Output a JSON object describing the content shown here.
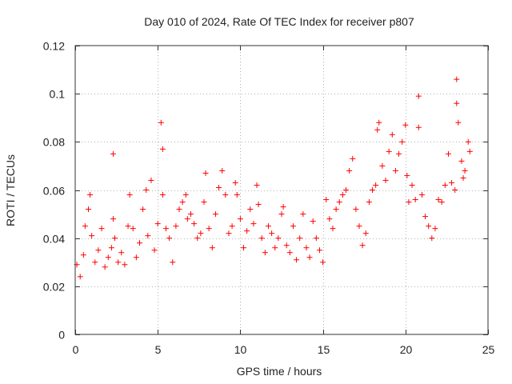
{
  "chart_data": {
    "type": "scatter",
    "title": "Day 010 of 2024, Rate Of TEC Index for receiver p807",
    "xlabel": "GPS time / hours",
    "ylabel": "ROTI / TECUs",
    "xlim": [
      0,
      25
    ],
    "ylim": [
      0,
      0.12
    ],
    "x_ticks": [
      "0",
      "5",
      "10",
      "15",
      "20",
      "25"
    ],
    "y_ticks": [
      "0",
      "0.02",
      "0.04",
      "0.06",
      "0.08",
      "0.1",
      "0.12"
    ],
    "x_tick_values": [
      0,
      5,
      10,
      15,
      20,
      25
    ],
    "y_tick_values": [
      0,
      0.02,
      0.04,
      0.06,
      0.08,
      0.1,
      0.12
    ],
    "grid": true,
    "marker": "+",
    "color": "#ff0000",
    "series": [
      {
        "name": "ROTI",
        "x": [
          0.1,
          0.3,
          0.5,
          0.6,
          0.8,
          0.9,
          1.0,
          1.2,
          1.4,
          1.6,
          1.8,
          2.0,
          2.2,
          2.3,
          2.3,
          2.4,
          2.6,
          2.8,
          3.0,
          3.2,
          3.3,
          3.5,
          3.7,
          3.9,
          4.1,
          4.3,
          4.4,
          4.6,
          4.8,
          5.0,
          5.2,
          5.3,
          5.3,
          5.5,
          5.7,
          5.9,
          6.1,
          6.3,
          6.5,
          6.7,
          6.8,
          7.0,
          7.2,
          7.4,
          7.6,
          7.8,
          7.9,
          8.1,
          8.3,
          8.5,
          8.7,
          8.9,
          9.1,
          9.3,
          9.5,
          9.7,
          9.8,
          10.0,
          10.2,
          10.4,
          10.6,
          10.8,
          11.0,
          11.1,
          11.3,
          11.5,
          11.7,
          11.9,
          12.1,
          12.3,
          12.5,
          12.6,
          12.8,
          13.0,
          13.2,
          13.4,
          13.6,
          13.8,
          14.0,
          14.2,
          14.4,
          14.6,
          14.8,
          15.0,
          15.2,
          15.4,
          15.6,
          15.8,
          16.0,
          16.2,
          16.4,
          16.6,
          16.8,
          17.0,
          17.2,
          17.4,
          17.6,
          17.8,
          18.0,
          18.2,
          18.3,
          18.4,
          18.6,
          18.8,
          19.0,
          19.2,
          19.4,
          19.6,
          19.8,
          20.0,
          20.1,
          20.2,
          20.4,
          20.6,
          20.8,
          20.8,
          21.0,
          21.2,
          21.4,
          21.6,
          21.8,
          22.0,
          22.2,
          22.4,
          22.6,
          22.8,
          23.0,
          23.1,
          23.1,
          23.2,
          23.4,
          23.5,
          23.6,
          23.8,
          23.9
        ],
        "y": [
          0.029,
          0.024,
          0.033,
          0.045,
          0.052,
          0.058,
          0.041,
          0.03,
          0.035,
          0.044,
          0.028,
          0.032,
          0.036,
          0.075,
          0.048,
          0.04,
          0.03,
          0.034,
          0.029,
          0.045,
          0.058,
          0.044,
          0.032,
          0.038,
          0.052,
          0.06,
          0.041,
          0.064,
          0.035,
          0.046,
          0.088,
          0.077,
          0.058,
          0.044,
          0.04,
          0.03,
          0.045,
          0.052,
          0.055,
          0.058,
          0.048,
          0.05,
          0.046,
          0.04,
          0.042,
          0.055,
          0.067,
          0.044,
          0.036,
          0.05,
          0.061,
          0.068,
          0.058,
          0.042,
          0.045,
          0.063,
          0.058,
          0.048,
          0.036,
          0.043,
          0.052,
          0.046,
          0.062,
          0.054,
          0.04,
          0.034,
          0.045,
          0.042,
          0.036,
          0.04,
          0.05,
          0.053,
          0.037,
          0.034,
          0.045,
          0.031,
          0.04,
          0.05,
          0.036,
          0.032,
          0.047,
          0.04,
          0.035,
          0.03,
          0.056,
          0.048,
          0.044,
          0.052,
          0.055,
          0.058,
          0.06,
          0.068,
          0.073,
          0.052,
          0.045,
          0.037,
          0.042,
          0.055,
          0.06,
          0.062,
          0.085,
          0.088,
          0.07,
          0.064,
          0.076,
          0.083,
          0.068,
          0.075,
          0.08,
          0.087,
          0.066,
          0.055,
          0.062,
          0.056,
          0.086,
          0.099,
          0.058,
          0.049,
          0.045,
          0.04,
          0.044,
          0.056,
          0.055,
          0.062,
          0.075,
          0.063,
          0.06,
          0.106,
          0.096,
          0.088,
          0.072,
          0.065,
          0.068,
          0.08,
          0.076
        ]
      }
    ]
  }
}
